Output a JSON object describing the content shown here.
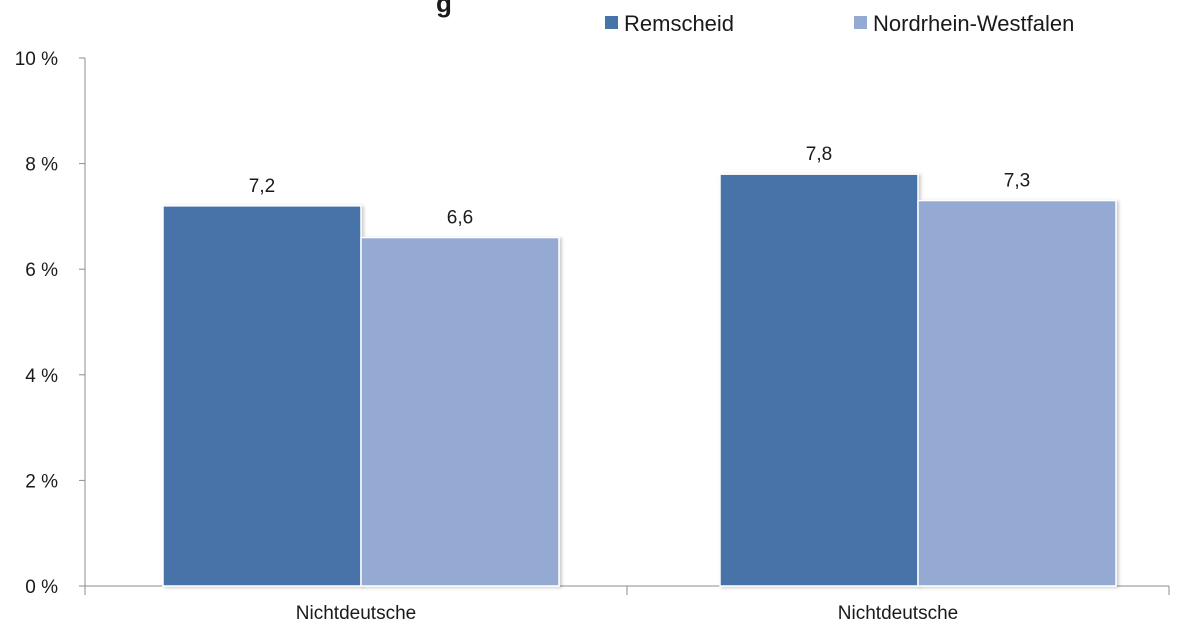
{
  "chart_data": {
    "type": "bar",
    "title_fragment": "g",
    "categories": [
      "Nichtdeutsche",
      "Nichtdeutsche"
    ],
    "series": [
      {
        "name": "Remscheid",
        "color": "#4673a8",
        "values": [
          7.2,
          7.8
        ],
        "labels": [
          "7,2",
          "7,8"
        ]
      },
      {
        "name": "Nordrhein-Westfalen",
        "color": "#95aad2",
        "values": [
          6.6,
          7.3
        ],
        "labels": [
          "6,6",
          "7,3"
        ]
      }
    ],
    "ylim": [
      0,
      10
    ],
    "yticks": [
      {
        "value": 0,
        "label": "0 %"
      },
      {
        "value": 2,
        "label": "2 %"
      },
      {
        "value": 4,
        "label": "4 %"
      },
      {
        "value": 6,
        "label": "6 %"
      },
      {
        "value": 8,
        "label": "8 %"
      },
      {
        "value": 10,
        "label": "10 %"
      }
    ],
    "grid": false,
    "legend_position": "top-right"
  }
}
